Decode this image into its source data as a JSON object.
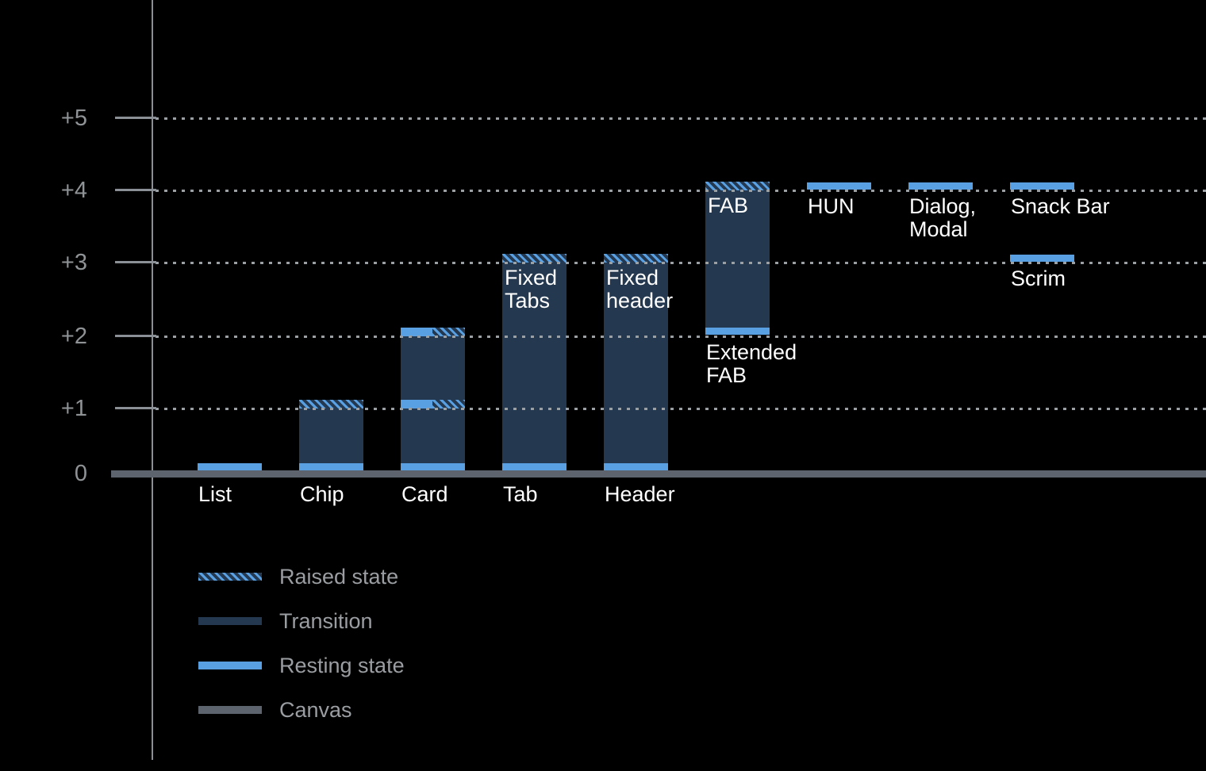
{
  "colors": {
    "background": "#000000",
    "transition": "#24384f",
    "resting": "#58a0e2",
    "canvas": "#5d646d",
    "grid_dots": "#9ba0a5",
    "axis": "#8b9096",
    "axis_label": "#8f9396",
    "legend_text": "#9a9da1",
    "bar_label": "#ffffff"
  },
  "chart_data": {
    "type": "bar",
    "title": "",
    "xlabel": "",
    "ylabel": "",
    "ylim": [
      0,
      5
    ],
    "grid": "horizontal dotted lines at +1 through +5",
    "legend_position": "bottom-left",
    "yticks": [
      {
        "label": "+5",
        "level": 5
      },
      {
        "label": "+4",
        "level": 4
      },
      {
        "label": "+3",
        "level": 3
      },
      {
        "label": "+2",
        "level": 2
      },
      {
        "label": "+1",
        "level": 1
      },
      {
        "label": "0",
        "level": 0
      }
    ],
    "legend": [
      {
        "label": "Raised state",
        "style": "raised"
      },
      {
        "label": "Transition",
        "style": "transition"
      },
      {
        "label": "Resting state",
        "style": "resting"
      },
      {
        "label": "Canvas",
        "style": "canvas"
      }
    ],
    "components": [
      {
        "id": "list",
        "name": "List",
        "col": 0,
        "axis_label": "List",
        "resting_elevation": 0,
        "float_level": 0
      },
      {
        "id": "chip",
        "name": "Chip",
        "col": 1,
        "axis_label": "Chip",
        "resting_elevation": 0,
        "raised_elevation": 1,
        "body": [
          0,
          1
        ],
        "top_style": "raised"
      },
      {
        "id": "card",
        "name": "Card",
        "col": 2,
        "axis_label": "Card",
        "resting_elevation": 0,
        "raised_elevation": 2,
        "body": [
          0,
          2
        ],
        "top_style": "resting-raised",
        "mid_bands": [
          1
        ]
      },
      {
        "id": "tab",
        "name": "Tab",
        "col": 3,
        "axis_label": "Tab",
        "resting_elevation": 0,
        "raised_elevation": 3,
        "body": [
          0,
          3
        ],
        "top_style": "raised",
        "inner_label_lines": [
          "Fixed",
          "Tabs"
        ]
      },
      {
        "id": "header",
        "name": "Header",
        "col": 4,
        "axis_label": "Header",
        "resting_elevation": 0,
        "raised_elevation": 3,
        "body": [
          0,
          3
        ],
        "top_style": "raised",
        "inner_label_lines": [
          "Fixed",
          "header"
        ]
      },
      {
        "id": "fab",
        "name": "FAB",
        "col": 5,
        "resting_elevation": 2,
        "raised_elevation": 4,
        "body": [
          2,
          4
        ],
        "top_style": "raised",
        "inner_label_lines": [
          "FAB"
        ],
        "below_label_lines": [
          "Extended",
          "FAB"
        ]
      },
      {
        "id": "hun",
        "name": "HUN",
        "col": 6,
        "resting_elevation": 4,
        "float_level": 4,
        "below_label_lines": [
          "HUN"
        ]
      },
      {
        "id": "dialog-modal",
        "name": "Dialog, Modal",
        "col": 7,
        "resting_elevation": 4,
        "float_level": 4,
        "below_label_lines": [
          "Dialog,",
          "Modal"
        ]
      },
      {
        "id": "snack-bar",
        "name": "Snack Bar",
        "col": 8,
        "resting_elevation": 4,
        "float_level": 4,
        "below_label_lines": [
          "Snack Bar"
        ]
      },
      {
        "id": "scrim",
        "name": "Scrim",
        "col": 8,
        "resting_elevation": 3,
        "float_level": 3,
        "below_label_lines": [
          "Scrim"
        ]
      }
    ]
  }
}
